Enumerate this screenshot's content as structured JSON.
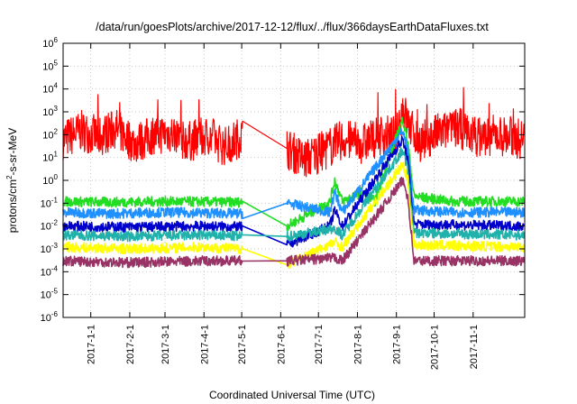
{
  "chart_data": {
    "type": "line",
    "title": "/data/run/goesPlots/archive/2017-12-12/flux/../flux/366daysEarthDataFluxes.txt",
    "xlabel": "Coordinated Universal Time (UTC)",
    "ylabel": "protons/cm²-s-sr-MeV",
    "ylabel_parts": {
      "pre": "protons/cm",
      "sup": "2",
      "post": "-s-sr-MeV"
    },
    "yscale": "log",
    "ylim": [
      1e-06,
      1000000.0
    ],
    "xlim": [
      "2016-12-10",
      "2017-12-12"
    ],
    "grid": true,
    "y_ticks": [
      {
        "value": 1e-06,
        "base": "10",
        "exp": "-6"
      },
      {
        "value": 1e-05,
        "base": "10",
        "exp": "-5"
      },
      {
        "value": 0.0001,
        "base": "10",
        "exp": "-4"
      },
      {
        "value": 0.001,
        "base": "10",
        "exp": "-3"
      },
      {
        "value": 0.01,
        "base": "10",
        "exp": "-2"
      },
      {
        "value": 0.1,
        "base": "10",
        "exp": "-1"
      },
      {
        "value": 1.0,
        "base": "10",
        "exp": "0"
      },
      {
        "value": 10.0,
        "base": "10",
        "exp": "1"
      },
      {
        "value": 100.0,
        "base": "10",
        "exp": "2"
      },
      {
        "value": 1000.0,
        "base": "10",
        "exp": "3"
      },
      {
        "value": 10000.0,
        "base": "10",
        "exp": "4"
      },
      {
        "value": 100000.0,
        "base": "10",
        "exp": "5"
      },
      {
        "value": 1000000.0,
        "base": "10",
        "exp": "6"
      }
    ],
    "x_ticks": [
      {
        "date": "2017-01-01",
        "label": "2017-1-1"
      },
      {
        "date": "2017-02-01",
        "label": "2017-2-1"
      },
      {
        "date": "2017-03-01",
        "label": "2017-3-1"
      },
      {
        "date": "2017-04-01",
        "label": "2017-4-1"
      },
      {
        "date": "2017-05-01",
        "label": "2017-5-1"
      },
      {
        "date": "2017-06-01",
        "label": "2017-6-1"
      },
      {
        "date": "2017-07-01",
        "label": "2017-7-1"
      },
      {
        "date": "2017-08-01",
        "label": "2017-8-1"
      },
      {
        "date": "2017-09-01",
        "label": "2017-9-1"
      },
      {
        "date": "2017-10-01",
        "label": "2017-10-1"
      },
      {
        "date": "2017-11-01",
        "label": "2017-11-1"
      }
    ],
    "data_gap": [
      "2017-05-03",
      "2017-06-05"
    ],
    "series": [
      {
        "color": "#ff0000",
        "points": [
          [
            "2016-12-10",
            60
          ],
          [
            "2016-12-25",
            150
          ],
          [
            "2017-01-08",
            80
          ],
          [
            "2017-01-20",
            200
          ],
          [
            "2017-02-05",
            40
          ],
          [
            "2017-02-20",
            100
          ],
          [
            "2017-03-05",
            120
          ],
          [
            "2017-03-20",
            50
          ],
          [
            "2017-04-05",
            90
          ],
          [
            "2017-04-18",
            30
          ],
          [
            "2017-05-02",
            100
          ],
          [
            "2017-06-06",
            25
          ],
          [
            "2017-06-20",
            8
          ],
          [
            "2017-07-05",
            20
          ],
          [
            "2017-07-20",
            60
          ],
          [
            "2017-08-05",
            40
          ],
          [
            "2017-08-20",
            100
          ],
          [
            "2017-09-01",
            80
          ],
          [
            "2017-09-06",
            2000
          ],
          [
            "2017-09-10",
            300
          ],
          [
            "2017-09-20",
            50
          ],
          [
            "2017-10-05",
            120
          ],
          [
            "2017-10-20",
            200
          ],
          [
            "2017-11-05",
            80
          ],
          [
            "2017-11-20",
            100
          ],
          [
            "2017-12-12",
            60
          ]
        ]
      },
      {
        "color": "#22dd22",
        "points": [
          [
            "2016-12-10",
            0.12
          ],
          [
            "2017-01-15",
            0.11
          ],
          [
            "2017-03-01",
            0.12
          ],
          [
            "2017-05-02",
            0.11
          ],
          [
            "2017-06-06",
            0.01
          ],
          [
            "2017-07-10",
            0.11
          ],
          [
            "2017-07-14",
            1.0
          ],
          [
            "2017-07-20",
            0.12
          ],
          [
            "2017-08-05",
            0.3
          ],
          [
            "2017-08-15",
            0.12
          ],
          [
            "2017-09-06",
            500
          ],
          [
            "2017-09-10",
            50
          ],
          [
            "2017-09-15",
            0.2
          ],
          [
            "2017-10-15",
            0.12
          ],
          [
            "2017-12-12",
            0.12
          ]
        ]
      },
      {
        "color": "#1e90ff",
        "points": [
          [
            "2016-12-10",
            0.04
          ],
          [
            "2017-01-15",
            0.035
          ],
          [
            "2017-03-01",
            0.04
          ],
          [
            "2017-05-02",
            0.035
          ],
          [
            "2017-06-06",
            0.1
          ],
          [
            "2017-07-10",
            0.04
          ],
          [
            "2017-07-14",
            0.3
          ],
          [
            "2017-07-20",
            0.04
          ],
          [
            "2017-09-06",
            150
          ],
          [
            "2017-09-10",
            20
          ],
          [
            "2017-09-15",
            0.05
          ],
          [
            "2017-10-15",
            0.04
          ],
          [
            "2017-12-12",
            0.04
          ]
        ]
      },
      {
        "color": "#0000cc",
        "points": [
          [
            "2016-12-10",
            0.01
          ],
          [
            "2017-02-01",
            0.009
          ],
          [
            "2017-04-01",
            0.01
          ],
          [
            "2017-05-02",
            0.009
          ],
          [
            "2017-06-06",
            0.0015
          ],
          [
            "2017-07-10",
            0.01
          ],
          [
            "2017-07-14",
            0.05
          ],
          [
            "2017-07-20",
            0.01
          ],
          [
            "2017-09-06",
            60
          ],
          [
            "2017-09-10",
            8
          ],
          [
            "2017-09-15",
            0.012
          ],
          [
            "2017-12-12",
            0.01
          ]
        ]
      },
      {
        "color": "#20b2aa",
        "points": [
          [
            "2016-12-10",
            0.004
          ],
          [
            "2017-02-01",
            0.0035
          ],
          [
            "2017-04-01",
            0.004
          ],
          [
            "2017-05-02",
            0.0035
          ],
          [
            "2017-06-06",
            0.0035
          ],
          [
            "2017-07-14",
            0.008
          ],
          [
            "2017-07-20",
            0.004
          ],
          [
            "2017-09-06",
            20
          ],
          [
            "2017-09-10",
            3
          ],
          [
            "2017-09-15",
            0.005
          ],
          [
            "2017-12-12",
            0.004
          ]
        ]
      },
      {
        "color": "#ffff00",
        "points": [
          [
            "2016-12-10",
            0.0012
          ],
          [
            "2017-02-01",
            0.001
          ],
          [
            "2017-04-01",
            0.0012
          ],
          [
            "2017-05-02",
            0.001
          ],
          [
            "2017-06-06",
            0.0002
          ],
          [
            "2017-07-14",
            0.002
          ],
          [
            "2017-07-20",
            0.0012
          ],
          [
            "2017-09-06",
            5
          ],
          [
            "2017-09-10",
            1
          ],
          [
            "2017-09-15",
            0.0015
          ],
          [
            "2017-12-12",
            0.0012
          ]
        ]
      },
      {
        "color": "#993366",
        "points": [
          [
            "2016-12-10",
            0.0003
          ],
          [
            "2017-02-01",
            0.00025
          ],
          [
            "2017-04-01",
            0.0003
          ],
          [
            "2017-05-02",
            0.0003
          ],
          [
            "2017-06-06",
            0.0003
          ],
          [
            "2017-07-14",
            0.0004
          ],
          [
            "2017-07-20",
            0.0003
          ],
          [
            "2017-09-06",
            1
          ],
          [
            "2017-09-10",
            0.2
          ],
          [
            "2017-09-15",
            0.0003
          ],
          [
            "2017-12-12",
            0.0003
          ]
        ]
      }
    ]
  }
}
